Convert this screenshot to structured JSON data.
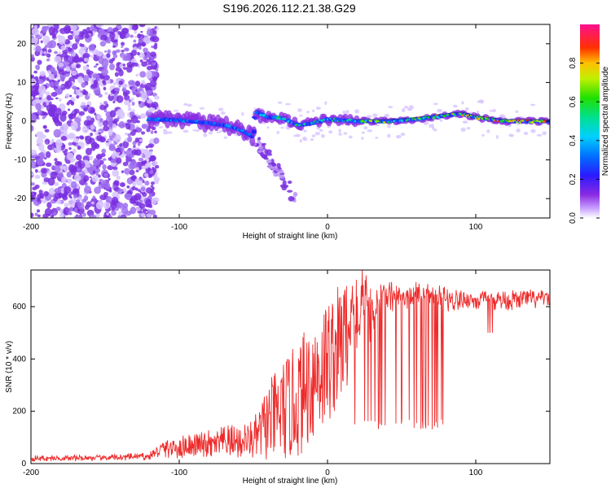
{
  "title": "S196.2026.112.21.38.G29",
  "chart_data": [
    {
      "type": "heatmap",
      "title": "S196.2026.112.21.38.G29",
      "xlabel": "Height of straight line (km)",
      "ylabel": "Frequency (Hz)",
      "xlim": [
        -200,
        150
      ],
      "ylim": [
        -25,
        25
      ],
      "x_ticks": [
        -200,
        -100,
        0,
        100
      ],
      "y_ticks": [
        -20,
        -10,
        0,
        10,
        20
      ],
      "colorbar": {
        "label": "Normalized spectral amplitude",
        "range": [
          0.0,
          1.0
        ],
        "ticks": [
          "0.0",
          "0.2",
          "0.4",
          "0.6",
          "0.8"
        ]
      },
      "ridge": {
        "description_points_x": [
          -120,
          -100,
          -80,
          -70,
          -60,
          -50,
          -48,
          -40,
          -30,
          -20,
          -10,
          0,
          20,
          40,
          60,
          80,
          90,
          100,
          110,
          120,
          150
        ],
        "frequency_hz": [
          0.5,
          0.3,
          -0.5,
          -1.0,
          -2.0,
          -4.0,
          2.5,
          1.0,
          0.8,
          -1.0,
          -0.5,
          0.5,
          0.0,
          0.0,
          0.5,
          1.5,
          2.0,
          1.0,
          0.5,
          0.0,
          0.0
        ]
      }
    },
    {
      "type": "line",
      "xlabel": "Height of straight line (km)",
      "ylabel": "SNR (10 * v/v)",
      "xlim": [
        -200,
        150
      ],
      "ylim": [
        0,
        740
      ],
      "x_ticks": [
        -200,
        -100,
        0,
        100
      ],
      "y_ticks": [
        0,
        200,
        400,
        600
      ],
      "color": "#ee2a2a",
      "envelope_x": [
        -200,
        -150,
        -120,
        -110,
        -80,
        -50,
        -40,
        -30,
        -20,
        -10,
        0,
        10,
        20,
        30,
        40,
        60,
        80,
        100,
        120,
        150
      ],
      "envelope_mean": [
        20,
        22,
        28,
        60,
        70,
        90,
        160,
        200,
        240,
        330,
        390,
        470,
        560,
        600,
        640,
        640,
        630,
        625,
        625,
        630
      ],
      "envelope_amplitude": [
        12,
        12,
        15,
        40,
        60,
        80,
        150,
        200,
        220,
        250,
        250,
        230,
        200,
        120,
        60,
        60,
        50,
        40,
        40,
        40
      ]
    }
  ]
}
